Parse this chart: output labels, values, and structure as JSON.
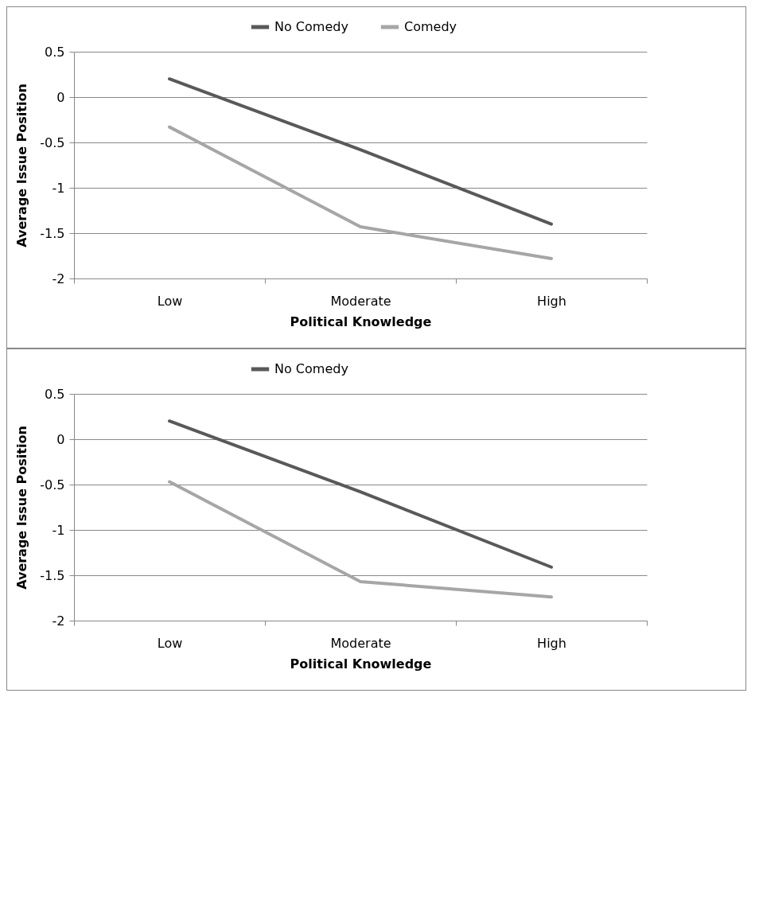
{
  "chart_data": [
    {
      "type": "line",
      "categories": [
        "Low",
        "Moderate",
        "High"
      ],
      "xlabel": "Political Knowledge",
      "ylabel": "Average Issue Position",
      "ylim": [
        -2,
        0.5
      ],
      "yticks": [
        -2,
        -1.5,
        -1,
        -0.5,
        0,
        0.5
      ],
      "grid": "y",
      "legend": "top",
      "series": [
        {
          "name": "No Comedy",
          "color": "#595959",
          "values": [
            0.2,
            -0.58,
            -1.4
          ]
        },
        {
          "name": "Comedy",
          "color": "#a6a6a6",
          "values": [
            -0.33,
            -1.43,
            -1.78
          ]
        }
      ]
    },
    {
      "type": "line",
      "categories": [
        "Low",
        "Moderate",
        "High"
      ],
      "xlabel": "Political Knowledge",
      "ylabel": "Average Issue Position",
      "ylim": [
        -2,
        0.5
      ],
      "yticks": [
        -2,
        -1.5,
        -1,
        -0.5,
        0,
        0.5
      ],
      "grid": "y",
      "legend": "top",
      "series": [
        {
          "name": "No Comedy",
          "color": "#595959",
          "values": [
            0.2,
            -0.58,
            -1.41
          ]
        },
        {
          "color": "#a6a6a6",
          "values": [
            -0.47,
            -1.57,
            -1.74
          ]
        }
      ]
    }
  ]
}
